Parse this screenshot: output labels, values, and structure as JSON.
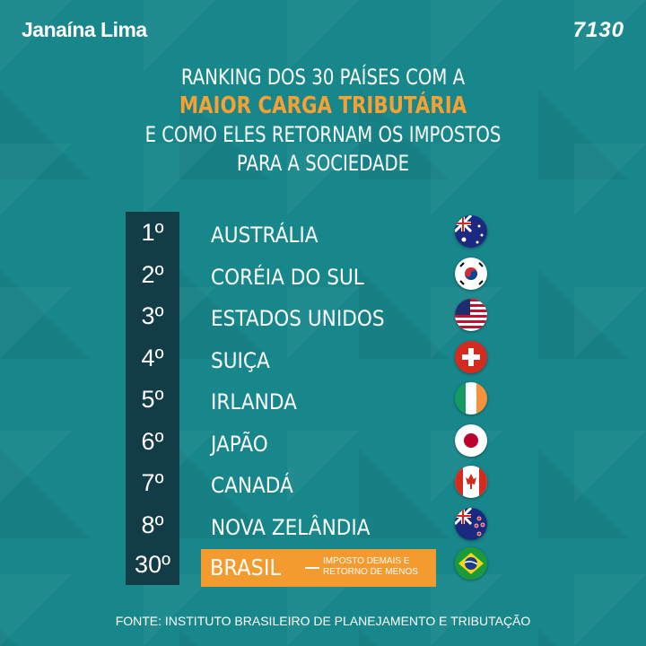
{
  "brand": "Janaína Lima",
  "logo": "7130",
  "title": {
    "line1": "RANKING DOS 30 PAÍSES COM A",
    "highlight": "MAIOR CARGA TRIBUTÁRIA",
    "line3": "E COMO ELES RETORNAM OS IMPOSTOS",
    "line4": "PARA A SOCIEDADE"
  },
  "ranking": [
    {
      "rank": "1º",
      "country": "AUSTRÁLIA",
      "flag": "australia-flag"
    },
    {
      "rank": "2º",
      "country": "CORÉIA DO SUL",
      "flag": "south-korea-flag"
    },
    {
      "rank": "3º",
      "country": "ESTADOS UNIDOS",
      "flag": "usa-flag"
    },
    {
      "rank": "4º",
      "country": "SUIÇA",
      "flag": "switzerland-flag"
    },
    {
      "rank": "5º",
      "country": "IRLANDA",
      "flag": "ireland-flag"
    },
    {
      "rank": "6º",
      "country": "JAPÃO",
      "flag": "japan-flag"
    },
    {
      "rank": "7º",
      "country": "CANADÁ",
      "flag": "canada-flag"
    },
    {
      "rank": "8º",
      "country": "NOVA ZELÂNDIA",
      "flag": "new-zealand-flag"
    }
  ],
  "brasil": {
    "rank": "30º",
    "country": "BRASIL",
    "note1": "Imposto demais e",
    "note2": "retorno de menos",
    "flag": "brazil-flag"
  },
  "source": "FONTE: INSTITUTO BRASILEIRO DE PLANEJAMENTO E TRIBUTAÇÃO",
  "colors": {
    "background": "#17878b",
    "column": "#133d46",
    "accent": "#f49b30"
  }
}
